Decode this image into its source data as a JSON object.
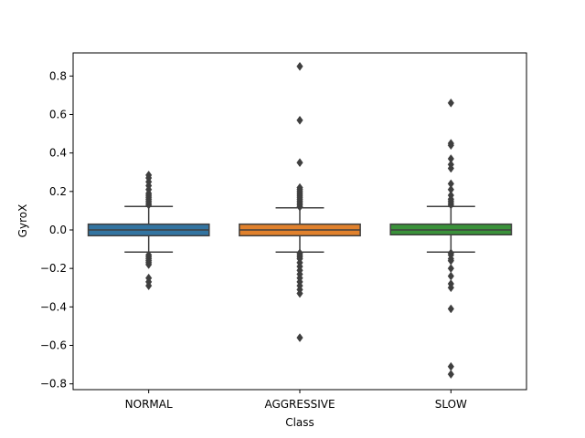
{
  "chart_data": {
    "type": "boxplot",
    "title": "",
    "xlabel": "Class",
    "ylabel": "GyroX",
    "ylim": [
      -0.83,
      0.92
    ],
    "yticks": [
      -0.8,
      -0.6,
      -0.4,
      -0.2,
      0.0,
      0.2,
      0.4,
      0.6,
      0.8
    ],
    "ytick_labels": [
      "−0.8",
      "−0.6",
      "−0.4",
      "−0.2",
      "0.0",
      "0.2",
      "0.4",
      "0.6",
      "0.8"
    ],
    "grid": false,
    "categories": [
      "NORMAL",
      "AGGRESSIVE",
      "SLOW"
    ],
    "boxes": [
      {
        "name": "NORMAL",
        "color": "#3274a1",
        "q1": -0.03,
        "median": 0.0,
        "q3": 0.03,
        "whisker_low": -0.115,
        "whisker_high": 0.122,
        "outliers": [
          0.13,
          0.14,
          0.15,
          0.16,
          0.17,
          0.18,
          0.19,
          0.21,
          0.23,
          0.25,
          0.27,
          0.285,
          -0.13,
          -0.14,
          -0.15,
          -0.16,
          -0.17,
          -0.18,
          -0.25,
          -0.27,
          -0.29
        ]
      },
      {
        "name": "AGGRESSIVE",
        "color": "#e1812c",
        "q1": -0.03,
        "median": 0.0,
        "q3": 0.03,
        "whisker_low": -0.115,
        "whisker_high": 0.115,
        "outliers": [
          0.12,
          0.13,
          0.14,
          0.15,
          0.16,
          0.17,
          0.18,
          0.19,
          0.2,
          0.21,
          0.22,
          0.35,
          0.57,
          0.85,
          -0.12,
          -0.13,
          -0.14,
          -0.15,
          -0.17,
          -0.19,
          -0.21,
          -0.23,
          -0.25,
          -0.27,
          -0.29,
          -0.31,
          -0.33,
          -0.56
        ]
      },
      {
        "name": "SLOW",
        "color": "#3a923a",
        "q1": -0.025,
        "median": 0.0,
        "q3": 0.03,
        "whisker_low": -0.115,
        "whisker_high": 0.122,
        "outliers": [
          0.13,
          0.14,
          0.15,
          0.16,
          0.18,
          0.21,
          0.24,
          0.32,
          0.34,
          0.37,
          0.44,
          0.45,
          0.66,
          -0.12,
          -0.13,
          -0.15,
          -0.16,
          -0.2,
          -0.24,
          -0.28,
          -0.3,
          -0.41,
          -0.71,
          -0.75
        ]
      }
    ]
  }
}
